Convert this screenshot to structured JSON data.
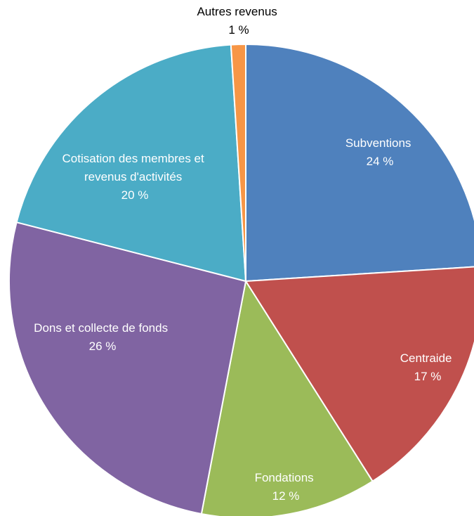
{
  "chart_data": {
    "type": "pie",
    "slices": [
      {
        "label": "Subventions",
        "value": 24,
        "value_label": "24 %",
        "color": "#4F81BD"
      },
      {
        "label": "Centraide",
        "value": 17,
        "value_label": "17 %",
        "color": "#C0504D"
      },
      {
        "label": "Fondations",
        "value": 12,
        "value_label": "12 %",
        "color": "#9BBB59"
      },
      {
        "label": "Dons et collecte de fonds",
        "value": 26,
        "value_label": "26 %",
        "color": "#8064A2"
      },
      {
        "label_lines": [
          "Cotisation des membres et",
          "revenus d'activités"
        ],
        "value": 20,
        "value_label": "20 %",
        "color": "#4BACC6"
      },
      {
        "label": "Autres revenus",
        "value": 1,
        "value_label": "1 %",
        "color": "#F79646"
      }
    ],
    "start": "12 o'clock",
    "direction": "clockwise",
    "legend": "none"
  }
}
